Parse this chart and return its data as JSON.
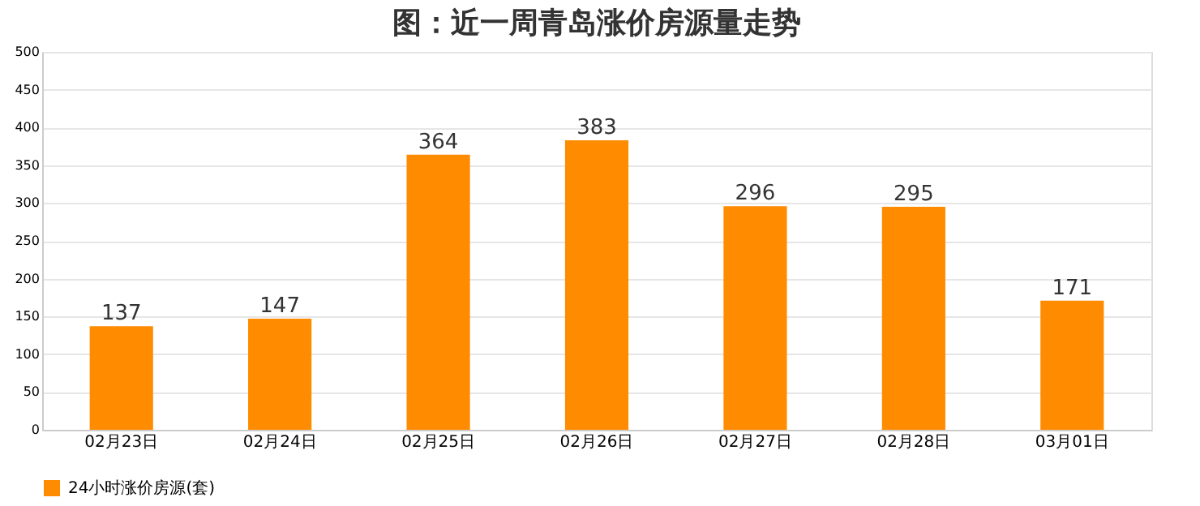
{
  "chart_data": {
    "type": "bar",
    "title": "图：近一周青岛涨价房源量走势",
    "categories": [
      "02月23日",
      "02月24日",
      "02月25日",
      "02月26日",
      "02月27日",
      "02月28日",
      "03月01日"
    ],
    "series": [
      {
        "name": "24小时涨价房源(套)",
        "color": "#ff8c00",
        "values": [
          137,
          147,
          364,
          383,
          296,
          295,
          171
        ]
      }
    ],
    "ylim": [
      0,
      500
    ],
    "yticks": [
      0,
      50,
      100,
      150,
      200,
      250,
      300,
      350,
      400,
      450,
      500
    ],
    "grid": "y",
    "legend": "bottom",
    "data_labels": true
  }
}
